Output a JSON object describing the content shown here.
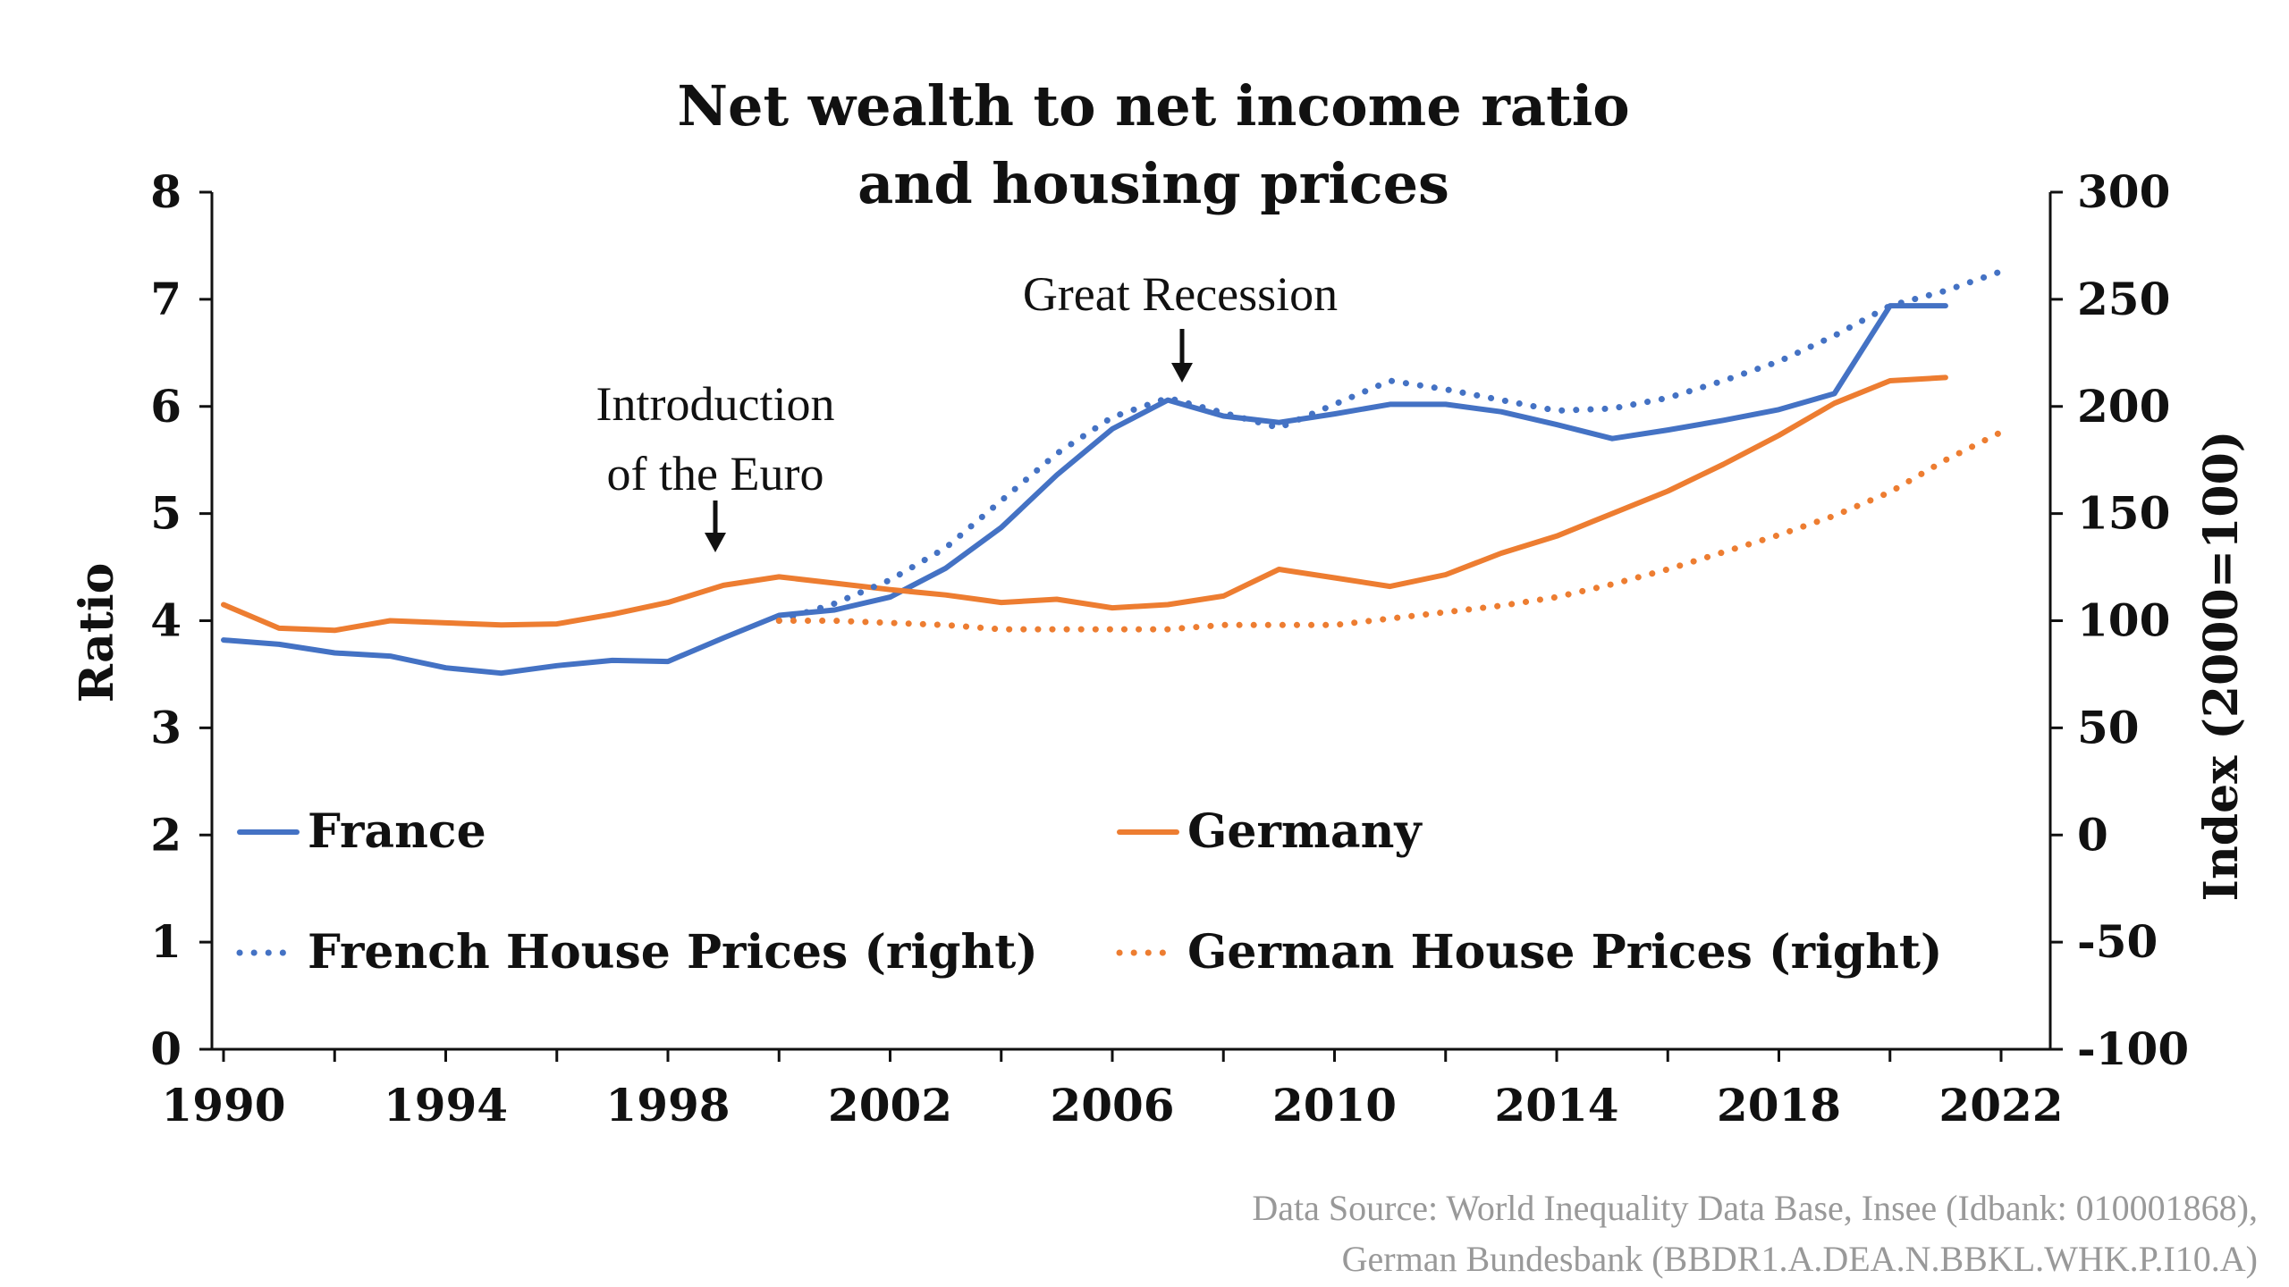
{
  "chart_data": {
    "type": "line",
    "title": [
      "Net wealth to net income ratio",
      "and housing prices"
    ],
    "ylabel": "Ratio",
    "y2label": "Index (2000=100)",
    "ylim": [
      0,
      8
    ],
    "y2lim": [
      -100,
      300
    ],
    "xlim": [
      1990,
      2022
    ],
    "y_ticks": [
      "0",
      "1",
      "2",
      "3",
      "4",
      "5",
      "6",
      "7",
      "8"
    ],
    "y2_ticks": [
      "-100",
      "-50",
      "0",
      "50",
      "100",
      "150",
      "200",
      "250",
      "300"
    ],
    "x_ticks": [
      "1990",
      "1994",
      "1998",
      "2002",
      "2006",
      "2010",
      "2014",
      "2018",
      "2022"
    ],
    "grid": false,
    "legend_position": "inside-bottom",
    "series": [
      {
        "name": "France",
        "axis": "left",
        "style": "solid",
        "color": "#4472c4",
        "x": [
          1990,
          1991,
          1992,
          1993,
          1994,
          1995,
          1996,
          1997,
          1998,
          1999,
          2000,
          2001,
          2002,
          2003,
          2004,
          2005,
          2006,
          2007,
          2008,
          2009,
          2010,
          2011,
          2012,
          2013,
          2014,
          2015,
          2016,
          2017,
          2018,
          2019,
          2020,
          2021
        ],
        "values": [
          3.82,
          3.78,
          3.7,
          3.67,
          3.56,
          3.51,
          3.58,
          3.63,
          3.62,
          3.84,
          4.05,
          4.1,
          4.22,
          4.49,
          4.87,
          5.36,
          5.79,
          6.06,
          5.91,
          5.85,
          5.93,
          6.02,
          6.02,
          5.95,
          5.83,
          5.7,
          5.78,
          5.87,
          5.97,
          6.12,
          6.94,
          6.94
        ]
      },
      {
        "name": "Germany",
        "axis": "left",
        "style": "solid",
        "color": "#ed7d31",
        "x": [
          1990,
          1991,
          1992,
          1993,
          1994,
          1995,
          1996,
          1997,
          1998,
          1999,
          2000,
          2001,
          2002,
          2003,
          2004,
          2005,
          2006,
          2007,
          2008,
          2009,
          2010,
          2011,
          2012,
          2013,
          2014,
          2015,
          2016,
          2017,
          2018,
          2019,
          2020,
          2021
        ],
        "values": [
          4.15,
          3.93,
          3.91,
          4.0,
          3.98,
          3.96,
          3.97,
          4.06,
          4.17,
          4.33,
          4.41,
          4.35,
          4.29,
          4.24,
          4.17,
          4.2,
          4.12,
          4.15,
          4.23,
          4.48,
          4.4,
          4.32,
          4.43,
          4.63,
          4.79,
          5.0,
          5.21,
          5.46,
          5.73,
          6.03,
          6.24,
          6.27
        ]
      },
      {
        "name": "French House Prices (right)",
        "axis": "right",
        "style": "dotted",
        "color": "#4472c4",
        "x": [
          2000,
          2001,
          2002,
          2003,
          2004,
          2005,
          2006,
          2007,
          2008,
          2009,
          2010,
          2011,
          2012,
          2013,
          2014,
          2015,
          2016,
          2017,
          2018,
          2019,
          2020,
          2021,
          2022
        ],
        "values": [
          100,
          108,
          119,
          134,
          156,
          178,
          195,
          204,
          197,
          190,
          201,
          212,
          208,
          203,
          198,
          199,
          204,
          212,
          221,
          233,
          247,
          254,
          263
        ]
      },
      {
        "name": "German House Prices (right)",
        "axis": "right",
        "style": "dotted",
        "color": "#ed7d31",
        "x": [
          2000,
          2001,
          2002,
          2003,
          2004,
          2005,
          2006,
          2007,
          2008,
          2009,
          2010,
          2011,
          2012,
          2013,
          2014,
          2015,
          2016,
          2017,
          2018,
          2019,
          2020,
          2021,
          2022
        ],
        "values": [
          100,
          100,
          99,
          98,
          96,
          96,
          96,
          96,
          98,
          98,
          98,
          101,
          104,
          107,
          111,
          117,
          124,
          132,
          140,
          149,
          160,
          175,
          188
        ]
      }
    ],
    "annotations": [
      {
        "lines": [
          "Introduction",
          "of the Euro"
        ],
        "x": 1999,
        "arrow": true
      },
      {
        "lines": [
          "Great Recession"
        ],
        "x": 2007,
        "arrow": true
      }
    ],
    "source": [
      "Data Source: World Inequality Data Base, Insee (Idbank: 010001868),",
      "German Bundesbank (BBDR1.A.DEA.N.BBKL.WHK.P.I10.A)"
    ]
  }
}
